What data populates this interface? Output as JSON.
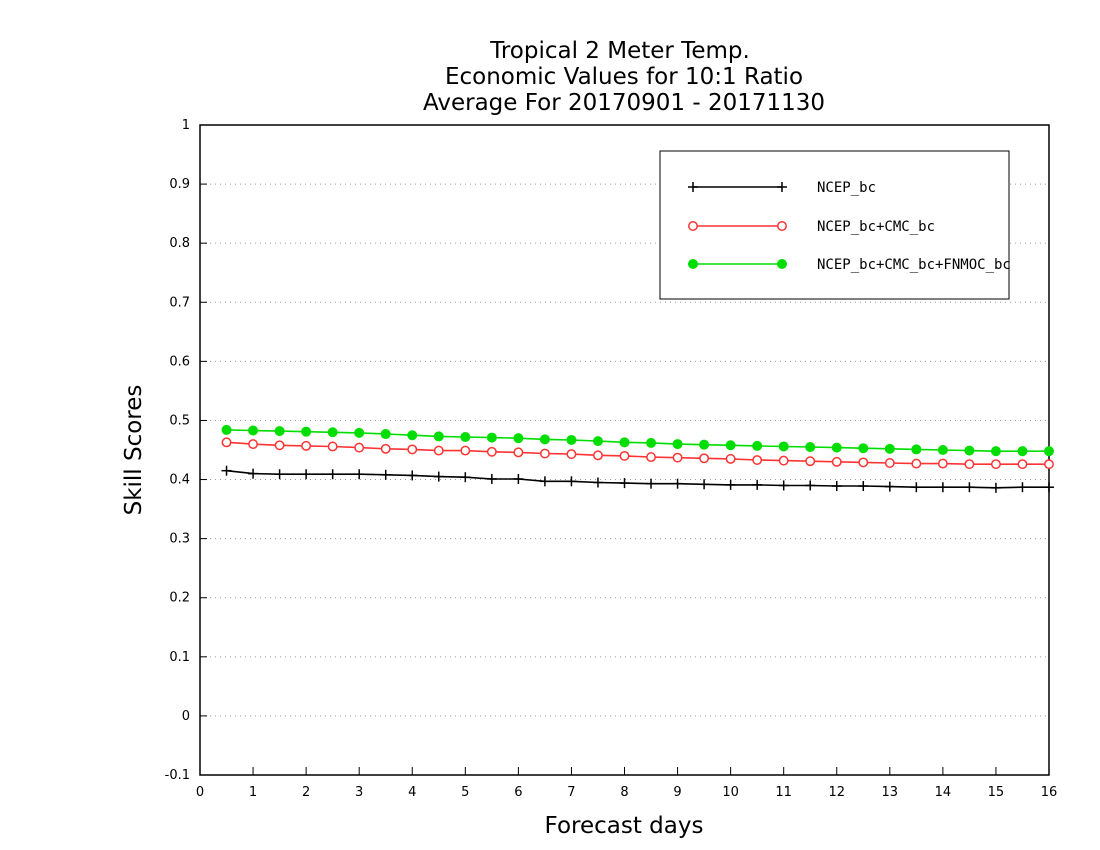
{
  "chart_data": {
    "type": "line",
    "title": [
      "Tropical 2 Meter Temp.",
      "Economic Values for 10:1 Ratio",
      "Average For 20170901 - 20171130"
    ],
    "xlabel": "Forecast days",
    "ylabel": "Skill Scores",
    "xlim": [
      0,
      16
    ],
    "ylim": [
      -0.1,
      1
    ],
    "xticks": [
      "0",
      "1",
      "2",
      "3",
      "4",
      "5",
      "6",
      "7",
      "8",
      "9",
      "10",
      "11",
      "12",
      "13",
      "14",
      "15",
      "16"
    ],
    "yticks": [
      "-0.1",
      "0",
      "0.1",
      "0.2",
      "0.3",
      "0.4",
      "0.5",
      "0.6",
      "0.7",
      "0.8",
      "0.9",
      "1"
    ],
    "grid": "horizontal dotted",
    "legend_position": "top-right",
    "x": [
      0.5,
      1,
      1.5,
      2,
      2.5,
      3,
      3.5,
      4,
      4.5,
      5,
      5.5,
      6,
      6.5,
      7,
      7.5,
      8,
      8.5,
      9,
      9.5,
      10,
      10.5,
      11,
      11.5,
      12,
      12.5,
      13,
      13.5,
      14,
      14.5,
      15,
      15.5,
      16
    ],
    "series": [
      {
        "name": "NCEP_bc",
        "color": "#000000",
        "marker": "plus",
        "values": [
          0.415,
          0.41,
          0.409,
          0.409,
          0.409,
          0.409,
          0.408,
          0.407,
          0.405,
          0.404,
          0.401,
          0.401,
          0.397,
          0.397,
          0.395,
          0.394,
          0.393,
          0.393,
          0.392,
          0.391,
          0.391,
          0.39,
          0.39,
          0.389,
          0.389,
          0.388,
          0.387,
          0.387,
          0.387,
          0.386,
          0.387,
          0.387
        ]
      },
      {
        "name": "NCEP_bc+CMC_bc",
        "color": "#ff3333",
        "marker": "open-circle",
        "values": [
          0.463,
          0.46,
          0.458,
          0.457,
          0.456,
          0.454,
          0.452,
          0.451,
          0.449,
          0.449,
          0.447,
          0.446,
          0.444,
          0.443,
          0.441,
          0.44,
          0.438,
          0.437,
          0.436,
          0.435,
          0.433,
          0.432,
          0.431,
          0.43,
          0.429,
          0.428,
          0.427,
          0.427,
          0.426,
          0.426,
          0.426,
          0.426
        ]
      },
      {
        "name": "NCEP_bc+CMC_bc+FNMOC_bc",
        "color": "#00dd00",
        "marker": "filled-circle",
        "values": [
          0.484,
          0.483,
          0.482,
          0.481,
          0.48,
          0.479,
          0.477,
          0.475,
          0.473,
          0.472,
          0.471,
          0.47,
          0.468,
          0.467,
          0.465,
          0.463,
          0.462,
          0.46,
          0.459,
          0.458,
          0.457,
          0.456,
          0.455,
          0.454,
          0.453,
          0.452,
          0.451,
          0.45,
          0.449,
          0.448,
          0.448,
          0.448
        ]
      }
    ]
  }
}
